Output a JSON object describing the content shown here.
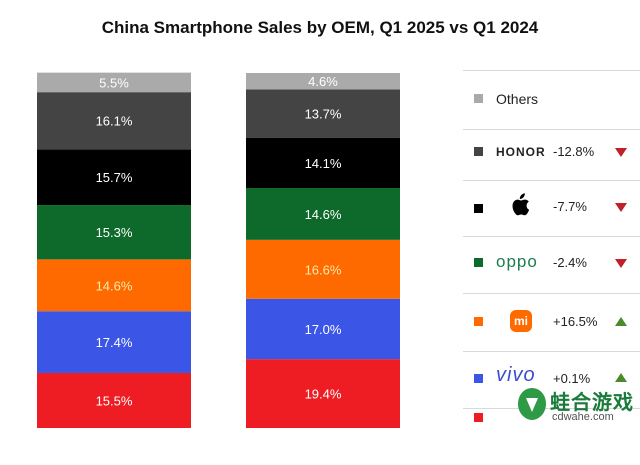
{
  "title": "China Smartphone Sales by OEM, Q1 2025 vs Q1 2024",
  "chart_data": {
    "type": "bar",
    "stacked": true,
    "percent": true,
    "title": "China Smartphone Sales by OEM, Q1 2025 vs Q1 2024",
    "categories": [
      "Q1 2025",
      "Q1 2024"
    ],
    "series": [
      {
        "key": "xiaomi_red",
        "values": [
          15.5,
          19.4
        ],
        "color": "#ee1d23"
      },
      {
        "key": "vivo",
        "values": [
          17.4,
          17.0
        ],
        "color": "#3b55e6"
      },
      {
        "key": "xiaomi",
        "values": [
          14.6,
          16.6
        ],
        "color": "#fe6a00"
      },
      {
        "key": "oppo",
        "values": [
          15.3,
          14.6
        ],
        "color": "#0d6a2a"
      },
      {
        "key": "apple",
        "values": [
          15.7,
          14.1
        ],
        "color": "#000000"
      },
      {
        "key": "honor",
        "values": [
          16.1,
          13.7
        ],
        "color": "#444444"
      },
      {
        "name": "Others",
        "key": "others",
        "values": [
          5.5,
          4.6
        ],
        "color": "#aaaaaa"
      }
    ],
    "data_labels": {
      "q1_2025": [
        "15.5%",
        "17.4%",
        "14.6%",
        "15.3%",
        "15.7%",
        "16.1%",
        "5.5%"
      ],
      "q1_2024": [
        "19.4%",
        "17.0%",
        "16.6%",
        "14.6%",
        "14.1%",
        "13.7%",
        "4.6%"
      ]
    },
    "legend": {
      "position": "right",
      "entries": [
        {
          "label": "Others",
          "change": "",
          "direction": "",
          "color": "#aaaaaa",
          "icon": "none"
        },
        {
          "label": "HONOR",
          "change": "-12.8%",
          "direction": "down",
          "color": "#444444",
          "icon": "honor-wordmark"
        },
        {
          "label": "",
          "change": "-7.7%",
          "direction": "down",
          "color": "#000000",
          "icon": "apple-icon"
        },
        {
          "label": "oppo",
          "change": "-2.4%",
          "direction": "down",
          "color": "#0d6a2a",
          "icon": "oppo-wordmark"
        },
        {
          "label": "mi",
          "change": "+16.5%",
          "direction": "up",
          "color": "#fe6a00",
          "icon": "mi-logo"
        },
        {
          "label": "vivo",
          "change": "+0.1%",
          "direction": "up",
          "color": "#3b55e6",
          "icon": "vivo-wordmark"
        },
        {
          "label": "",
          "change": "",
          "direction": "",
          "color": "#ee1d23",
          "icon": "none"
        }
      ]
    },
    "grid": false
  },
  "watermark": {
    "text": "蛙合游戏",
    "url": "cdwahe.com"
  }
}
